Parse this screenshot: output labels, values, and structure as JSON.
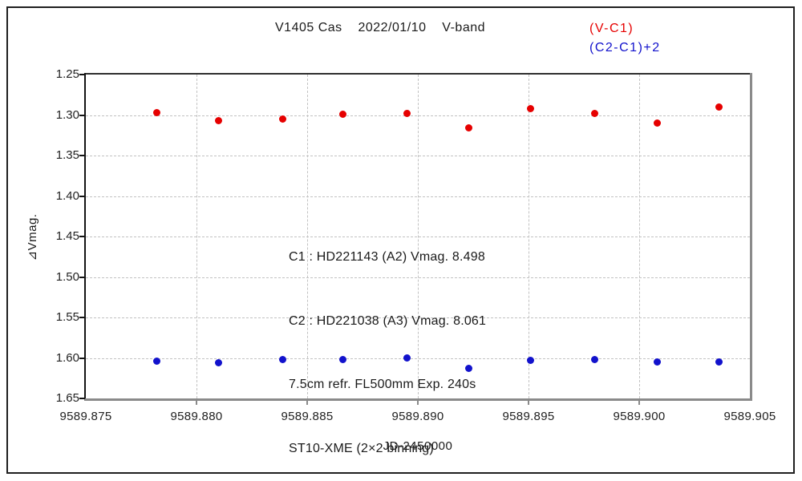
{
  "title": "V1405 Cas    2022/01/10    V-band",
  "legend": {
    "series1_label": "(V-C1)",
    "series2_label": "(C2-C1)+2"
  },
  "annotation": {
    "lines": [
      "C1 : HD221143 (A2) Vmag. 8.498",
      "C2 : HD221038 (A3) Vmag. 8.061",
      "7.5cm refr. FL500mm Exp. 240s",
      "ST10-XME (2×2 binning)"
    ]
  },
  "colors": {
    "series1_red": "#e60000",
    "series2_blue": "#1212cc",
    "grid": "#c2c2c2",
    "axis_dark": "#141414",
    "axis_gray": "#8a8a8a"
  },
  "chart_data": {
    "type": "scatter",
    "title": "V1405 Cas 2022/01/10 V-band",
    "xlabel": "JD-2450000",
    "ylabel": "⧏Vmag.",
    "ylabel_text": "⊿Vmag.",
    "xlim": [
      9589.875,
      9589.905
    ],
    "ylim": [
      1.25,
      1.65
    ],
    "y_inverted": true,
    "grid": "dashed",
    "legend_position": "top-right-outside",
    "x_tick_values": [
      9589.875,
      9589.88,
      9589.885,
      9589.89,
      9589.895,
      9589.9,
      9589.905
    ],
    "x_tick_labels": [
      "9589.875",
      "9589.880",
      "9589.885",
      "9589.890",
      "9589.895",
      "9589.900",
      "9589.905"
    ],
    "y_tick_values": [
      1.25,
      1.3,
      1.35,
      1.4,
      1.45,
      1.5,
      1.55,
      1.6,
      1.65
    ],
    "y_tick_labels": [
      "1.25",
      "1.30",
      "1.35",
      "1.40",
      "1.45",
      "1.50",
      "1.55",
      "1.60",
      "1.65"
    ],
    "series": [
      {
        "name": "(V-C1)",
        "color": "#e60000",
        "points": [
          [
            9589.8782,
            1.297
          ],
          [
            9589.881,
            1.307
          ],
          [
            9589.8839,
            1.305
          ],
          [
            9589.8866,
            1.299
          ],
          [
            9589.8895,
            1.298
          ],
          [
            9589.8923,
            1.316
          ],
          [
            9589.8951,
            1.292
          ],
          [
            9589.898,
            1.298
          ],
          [
            9589.9008,
            1.31
          ],
          [
            9589.9036,
            1.29
          ]
        ]
      },
      {
        "name": "(C2-C1)+2",
        "color": "#1212cc",
        "points": [
          [
            9589.8782,
            1.604
          ],
          [
            9589.881,
            1.606
          ],
          [
            9589.8839,
            1.602
          ],
          [
            9589.8866,
            1.602
          ],
          [
            9589.8895,
            1.6
          ],
          [
            9589.8923,
            1.613
          ],
          [
            9589.8951,
            1.603
          ],
          [
            9589.898,
            1.602
          ],
          [
            9589.9008,
            1.605
          ],
          [
            9589.9036,
            1.605
          ]
        ]
      }
    ]
  }
}
